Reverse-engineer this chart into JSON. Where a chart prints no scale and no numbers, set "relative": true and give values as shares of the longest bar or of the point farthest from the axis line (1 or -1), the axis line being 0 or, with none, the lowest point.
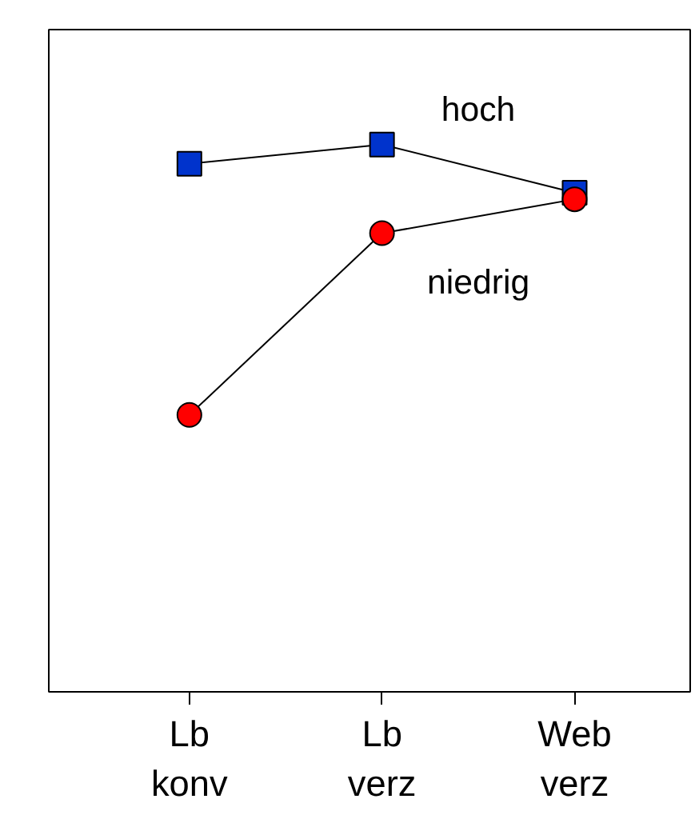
{
  "chart_data": {
    "type": "line",
    "relative": true,
    "categories": [
      "Lb konv",
      "Lb verz",
      "Web verz"
    ],
    "grid": false,
    "legend": false,
    "series": [
      {
        "name": "hoch",
        "color": "#0033cc",
        "marker": "square",
        "values": [
          0.965,
          1,
          0.912
        ]
      },
      {
        "name": "niedrig",
        "color": "#ff0000",
        "marker": "circle",
        "values": [
          0.506,
          0.838,
          0.9
        ]
      }
    ]
  }
}
